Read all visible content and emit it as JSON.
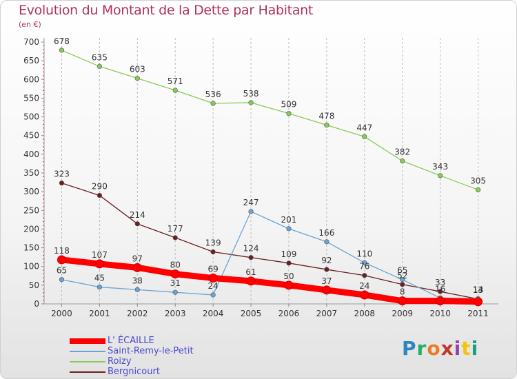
{
  "header": {
    "title": "Evolution du Montant de la Dette par Habitant",
    "unit": "(en €)"
  },
  "brand": {
    "text": "Proxiti",
    "letters": [
      "P",
      "r",
      "o",
      "x",
      "i",
      "t",
      "i"
    ],
    "colors": [
      "#2e86c1",
      "#27ae60",
      "#e67e22",
      "#c0392b",
      "#8e44ad",
      "#f1c40f",
      "#16a085"
    ]
  },
  "chart_data": {
    "type": "line",
    "x": [
      "2000",
      "2001",
      "2002",
      "2003",
      "2004",
      "2005",
      "2006",
      "2007",
      "2008",
      "2009",
      "2010",
      "2011"
    ],
    "ylim": [
      0,
      700
    ],
    "yticks": [
      0,
      50,
      100,
      150,
      200,
      250,
      300,
      350,
      400,
      450,
      500,
      550,
      600,
      650,
      700
    ],
    "grid": "vertical dashed",
    "legend_position": "bottom-left",
    "series": [
      {
        "name": "L' ÉCAILLE",
        "color": "#ff0000",
        "emphasis": true,
        "values": [
          118,
          107,
          97,
          80,
          69,
          61,
          50,
          37,
          24,
          8,
          8,
          6
        ],
        "labels": [
          "118",
          "107",
          "97",
          "80",
          "69",
          "61",
          "50",
          "37",
          "24",
          "8",
          "",
          ""
        ]
      },
      {
        "name": "Saint-Remy-le-Petit",
        "color": "#6aa3d5",
        "emphasis": false,
        "values": [
          65,
          45,
          38,
          31,
          24,
          247,
          201,
          166,
          110,
          65,
          16,
          14
        ],
        "labels": [
          "65",
          "45",
          "38",
          "31",
          "24",
          "247",
          "201",
          "166",
          "110",
          "65",
          "16",
          "14"
        ]
      },
      {
        "name": "Roizy",
        "color": "#88cc55",
        "emphasis": false,
        "values": [
          678,
          635,
          603,
          571,
          536,
          538,
          509,
          478,
          447,
          382,
          343,
          305
        ],
        "labels": [
          "678",
          "635",
          "603",
          "571",
          "536",
          "538",
          "509",
          "478",
          "447",
          "382",
          "343",
          "305"
        ]
      },
      {
        "name": "Bergnicourt",
        "color": "#6b1f1f",
        "emphasis": false,
        "values": [
          323,
          290,
          214,
          177,
          139,
          124,
          109,
          92,
          76,
          52,
          33,
          13
        ],
        "labels": [
          "323",
          "290",
          "214",
          "177",
          "139",
          "124",
          "109",
          "92",
          "76",
          "52",
          "33",
          "13"
        ]
      }
    ]
  }
}
